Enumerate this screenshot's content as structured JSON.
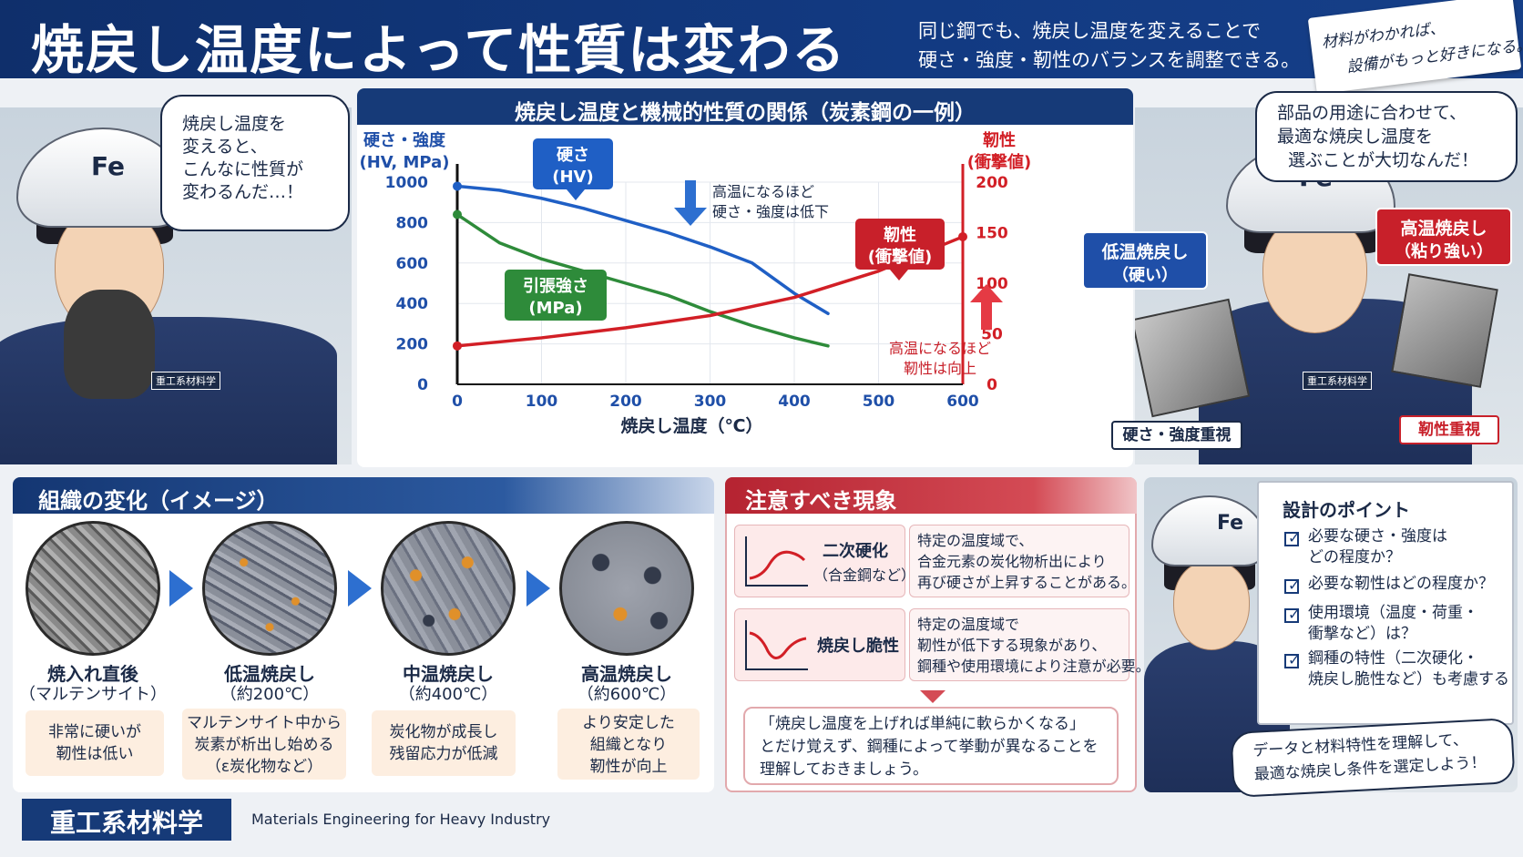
{
  "header": {
    "title": "焼戻し温度によって性質は変わる",
    "subtitle_line1": "同じ鋼でも、焼戻し温度を変えることで",
    "subtitle_line2": "硬さ・強度・靭性のバランスを調整できる。",
    "tag_line1": "材料がわかれば、",
    "tag_line2": "設備がもっと好きになる。"
  },
  "left_character": {
    "helmet_text": "Fe",
    "patch": "重工系材料学",
    "bubble_lines": [
      "焼戻し温度を",
      "変えると、",
      "こんなに性質が",
      "変わるんだ…！"
    ]
  },
  "right_character": {
    "helmet_text": "Fe",
    "patch": "重工系材料学",
    "bubble_lines": [
      "部品の用途に合わせて、",
      "最適な焼戻し温度を",
      "選ぶことが大切なんだ！"
    ],
    "low_temp_label": [
      "低温焼戻し",
      "（硬い）"
    ],
    "high_temp_label": [
      "高温焼戻し",
      "（粘り強い）"
    ],
    "low_tag": "硬さ・強度重視",
    "high_tag": "靭性重視"
  },
  "chart_data": {
    "type": "line",
    "title": "焼戻し温度と機械的性質の関係（炭素鋼の一例）",
    "xlabel": "焼戻し温度（℃）",
    "ylabel_left": [
      "硬さ・強度",
      "(HV, MPa)"
    ],
    "ylabel_right": [
      "靭性",
      "(衝撃値)"
    ],
    "xlim": [
      0,
      600
    ],
    "ylim_left": [
      0,
      1000
    ],
    "ylim_right": [
      0,
      200
    ],
    "x_ticks": [
      0,
      100,
      200,
      300,
      400,
      500,
      600
    ],
    "y_ticks_left": [
      0,
      200,
      400,
      600,
      800,
      1000
    ],
    "y_ticks_right": [
      0,
      50,
      100,
      150,
      200
    ],
    "series": [
      {
        "name": "硬さ\n(HV)",
        "axis": "left",
        "color": "#1f5fc5",
        "x": [
          0,
          50,
          100,
          150,
          200,
          250,
          300,
          350,
          400,
          440
        ],
        "y": [
          980,
          960,
          920,
          870,
          810,
          750,
          680,
          600,
          450,
          350
        ]
      },
      {
        "name": "引張強さ\n(MPa)",
        "axis": "left",
        "color": "#2e8b3a",
        "x": [
          0,
          50,
          100,
          150,
          200,
          250,
          300,
          350,
          400,
          440
        ],
        "y": [
          840,
          700,
          620,
          560,
          500,
          440,
          360,
          290,
          230,
          190
        ]
      },
      {
        "name": "靭性\n(衝撃値)",
        "axis": "right",
        "color": "#d21f26",
        "x": [
          0,
          100,
          200,
          300,
          400,
          500,
          600
        ],
        "y": [
          38,
          46,
          56,
          68,
          86,
          112,
          146
        ]
      }
    ],
    "legend_labels": {
      "hardness": [
        "硬さ",
        "(HV)"
      ],
      "tensile": [
        "引張強さ",
        "(MPa)"
      ],
      "toughness": [
        "靭性",
        "(衝撃値)"
      ]
    },
    "annotations": {
      "down": [
        "高温になるほど",
        "硬さ・強度は低下"
      ],
      "up": [
        "高温になるほど",
        "靭性は向上"
      ]
    }
  },
  "structure": {
    "title": "組織の変化（イメージ）",
    "stages": [
      {
        "name": "焼入れ直後",
        "sub": "（マルテンサイト）",
        "desc": [
          "非常に硬いが",
          "靭性は低い"
        ]
      },
      {
        "name": "低温焼戻し",
        "sub": "（約200℃）",
        "desc": [
          "マルテンサイト中から",
          "炭素が析出し始める",
          "（ε炭化物など）"
        ]
      },
      {
        "name": "中温焼戻し",
        "sub": "（約400℃）",
        "desc": [
          "炭化物が成長し",
          "残留応力が低減"
        ]
      },
      {
        "name": "高温焼戻し",
        "sub": "（約600℃）",
        "desc": [
          "より安定した",
          "組織となり",
          "靭性が向上"
        ]
      }
    ]
  },
  "phenomena": {
    "title": "注意すべき現象",
    "items": [
      {
        "name": "二次硬化",
        "sub": "（合金鋼など）",
        "desc": [
          "特定の温度域で、",
          "合金元素の炭化物析出により",
          "再び硬さが上昇することがある。"
        ]
      },
      {
        "name": "焼戻し脆性",
        "sub": "",
        "desc": [
          "特定の温度域で",
          "靭性が低下する現象があり、",
          "鋼種や使用環境により注意が必要。"
        ]
      }
    ],
    "note": [
      "「焼戻し温度を上げれば単純に軟らかくなる」",
      "とだけ覚えず、鋼種によって挙動が異なることを",
      "理解しておきましょう。"
    ]
  },
  "design_points": {
    "helmet_text": "Fe",
    "title": "設計のポイント",
    "items": [
      [
        "必要な硬さ・強度は",
        "どの程度か？"
      ],
      [
        "必要な靭性はどの程度か？"
      ],
      [
        "使用環境（温度・荷重・",
        "衝撃など）は？"
      ],
      [
        "鋼種の特性（二次硬化・",
        "焼戻し脆性など）も考慮する"
      ]
    ],
    "bubble_lines": [
      "データと材料特性を理解して、",
      "最適な焼戻し条件を選定しよう！"
    ]
  },
  "footer": {
    "badge": "重工系材料学",
    "english": "Materials Engineering for Heavy Industry"
  }
}
